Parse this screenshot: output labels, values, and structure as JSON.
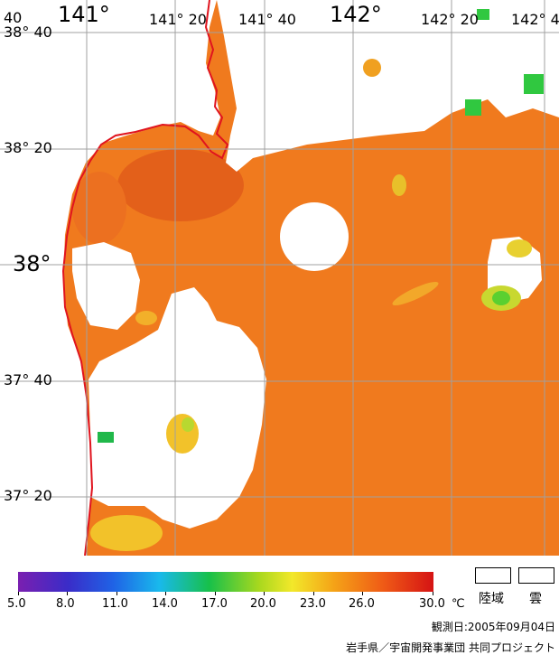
{
  "map": {
    "top_labels": [
      "40",
      "141°",
      "141° 20",
      "141° 40",
      "142°",
      "142° 20",
      "142° 4"
    ],
    "left_labels": [
      "38° 40",
      "38° 20",
      "38°",
      "37° 40",
      "37° 20"
    ]
  },
  "colorbar": {
    "ticks": [
      "5.0",
      "8.0",
      "11.0",
      "14.0",
      "17.0",
      "20.0",
      "23.0",
      "26.0",
      "30.0"
    ],
    "unit": "℃"
  },
  "legend": {
    "land_label": "陸域",
    "cloud_label": "雲"
  },
  "footer": {
    "date": "観測日:2005年09月04日",
    "credit": "岩手県／宇宙開発事業団 共同プロジェクト"
  },
  "colors": {
    "sea": "#f07a1e",
    "warm": "#e05814",
    "coast": "#e0141e",
    "grid": "#a0a0a0",
    "cloud": "#ffffff"
  }
}
